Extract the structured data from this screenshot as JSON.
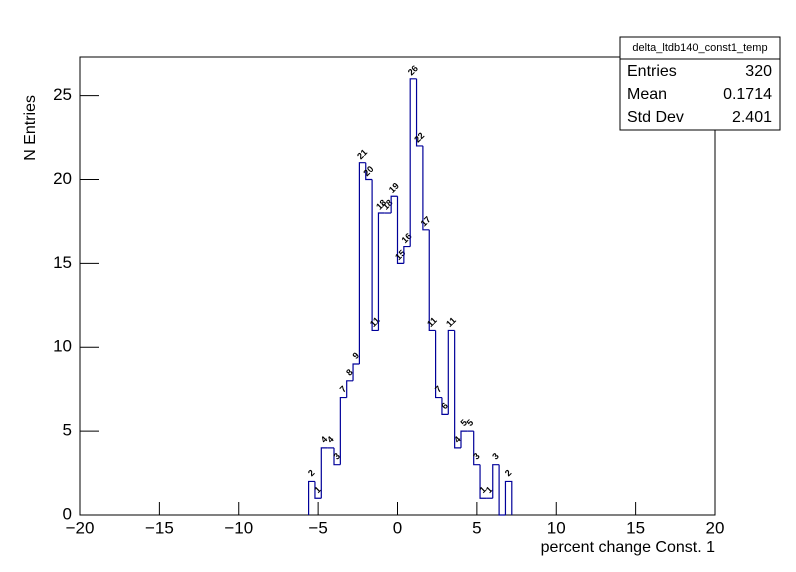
{
  "chart_data": {
    "type": "histogram",
    "xlabel": "percent change Const. 1",
    "ylabel": "N Entries",
    "bins": [
      -5.6,
      -5.2,
      -4.8,
      -4.4,
      -4,
      -3.6,
      -3.2,
      -2.8,
      -2.4,
      -2,
      -1.6,
      -1.2,
      -0.8,
      -0.4,
      0,
      0.4,
      0.8,
      1.2,
      1.6,
      2,
      2.4,
      2.8,
      3.2,
      3.6,
      4,
      4.4,
      4.8,
      5.2,
      5.6,
      6,
      6.4,
      6.8,
      7.2
    ],
    "values": [
      2,
      1,
      4,
      4,
      3,
      7,
      8,
      9,
      21,
      20,
      11,
      18,
      18,
      19,
      15,
      16,
      26,
      22,
      17,
      11,
      7,
      6,
      11,
      4,
      5,
      5,
      3,
      1,
      1,
      3,
      0,
      2
    ],
    "color": "#000099",
    "xlim": [
      -20,
      20
    ],
    "ylim": [
      0,
      27.3
    ],
    "xticks": [
      {
        "value": -20,
        "label": "−20"
      },
      {
        "value": -15,
        "label": "−15"
      },
      {
        "value": -10,
        "label": "−10"
      },
      {
        "value": -5,
        "label": "−5"
      },
      0,
      5,
      10,
      15,
      20
    ],
    "yticks": [
      0,
      5,
      10,
      15,
      20,
      25
    ],
    "stats": {
      "title": "delta_ltdb140_const1_temp",
      "rows": [
        {
          "name": "Entries",
          "value": 320
        },
        {
          "name": "Mean",
          "value": 0.1714
        },
        {
          "name": "Std Dev",
          "value": 2.401
        }
      ]
    }
  }
}
